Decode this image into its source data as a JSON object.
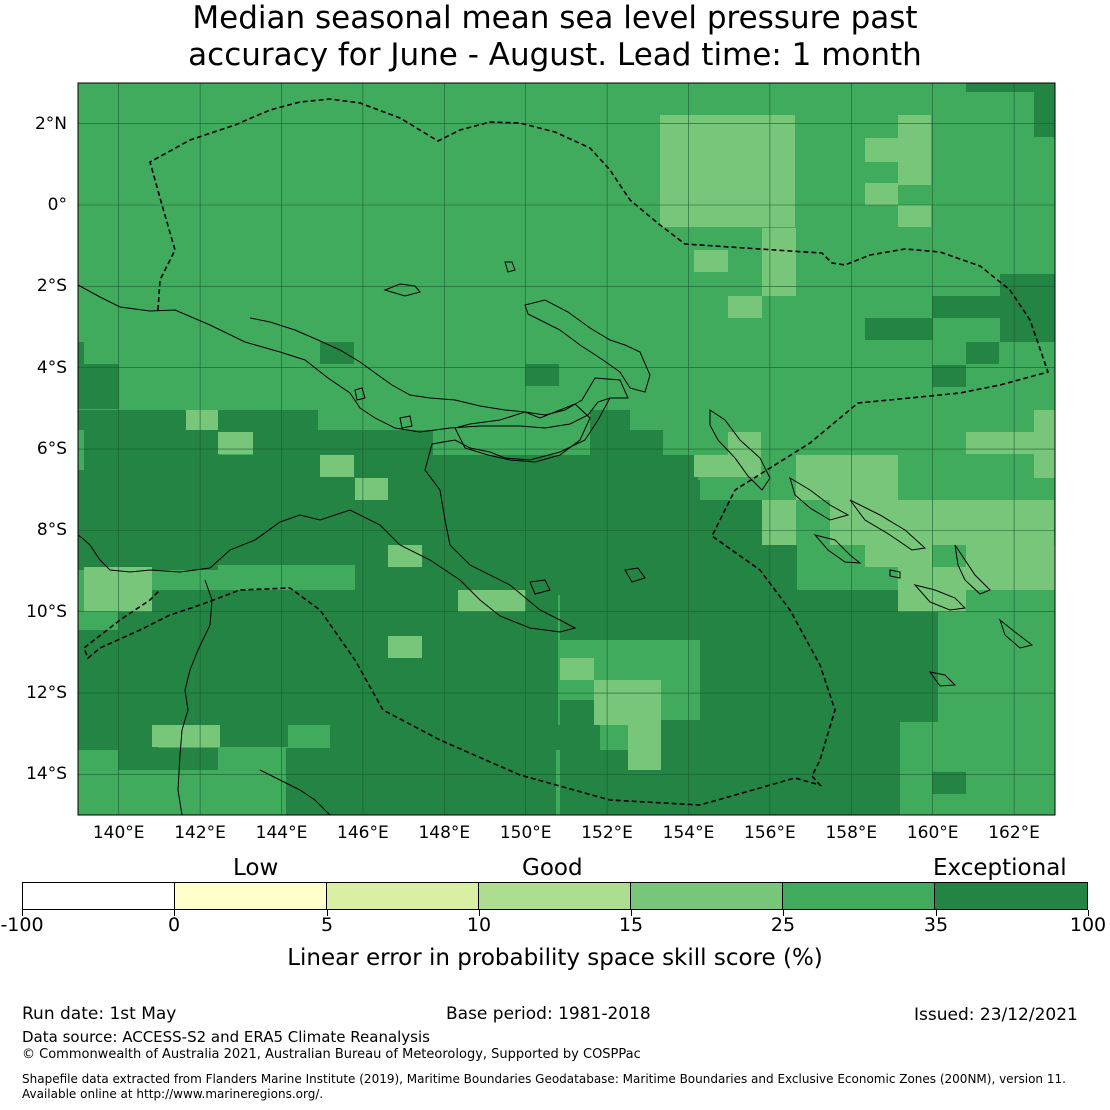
{
  "title": {
    "line1": "Median seasonal mean sea level pressure past",
    "line2": "accuracy for June - August. Lead time: 1 month"
  },
  "map": {
    "lat_labels": [
      "2°N",
      "0°",
      "2°S",
      "4°S",
      "6°S",
      "8°S",
      "10°S",
      "12°S",
      "14°S"
    ],
    "lat_values": [
      2,
      0,
      -2,
      -4,
      -6,
      -8,
      -10,
      -12,
      -14
    ],
    "lon_labels": [
      "140°E",
      "142°E",
      "144°E",
      "146°E",
      "148°E",
      "150°E",
      "152°E",
      "154°E",
      "156°E",
      "158°E",
      "160°E",
      "162°E"
    ],
    "lon_values": [
      140,
      142,
      144,
      146,
      148,
      150,
      152,
      154,
      156,
      158,
      160,
      162
    ],
    "lon_range": [
      139,
      163
    ],
    "lat_range": [
      -15,
      3
    ],
    "cell_colors": {
      "exceptional": "#238443",
      "high": "#41ab5d",
      "medium": "#78c679"
    }
  },
  "colorbar": {
    "category_labels": [
      "Low",
      "Good",
      "Exceptional"
    ],
    "ticks": [
      "-100",
      "0",
      "5",
      "10",
      "15",
      "25",
      "35",
      "100"
    ],
    "colors": [
      "#ffffff",
      "#ffffcc",
      "#d9f0a3",
      "#addd8e",
      "#78c679",
      "#41ab5d",
      "#238443"
    ],
    "label": "Linear error in probability space skill score (%)"
  },
  "footer": {
    "run_date": "Run date: 1st May",
    "base_period": "Base period: 1981-2018",
    "issued": "Issued: 23/12/2021",
    "data_source": "Data source: ACCESS-S2 and ERA5 Climate Reanalysis",
    "copyright": "© Commonwealth of Australia 2021, Australian Bureau of Meteorology, Supported by COSPPac",
    "shapefile_line1": "Shapefile data extracted from Flanders Marine Institute (2019), Maritime Boundaries Geodatabase: Maritime Boundaries and Exclusive Economic Zones (200NM), version 11.",
    "shapefile_line2": "Available online at http://www.marineregions.org/."
  }
}
